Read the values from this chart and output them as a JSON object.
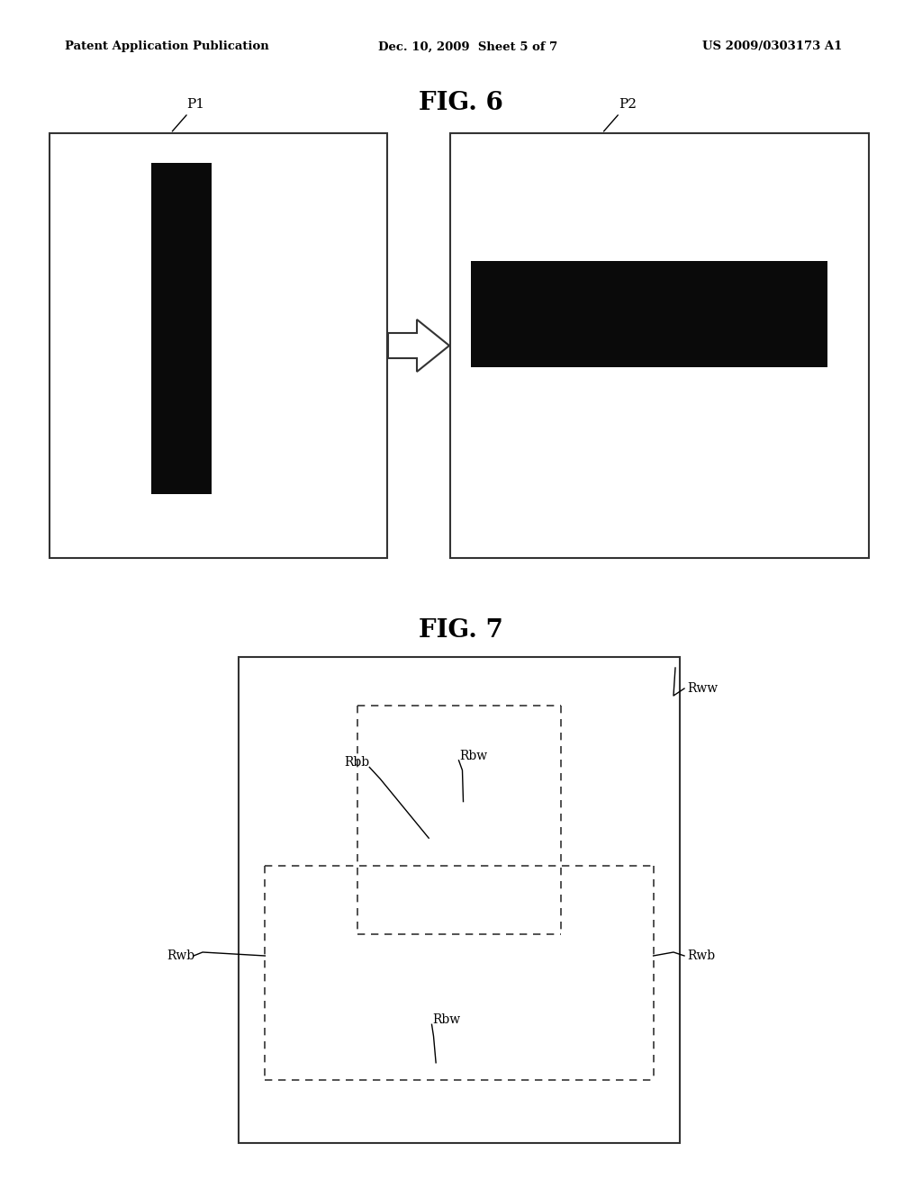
{
  "bg_color": "#ffffff",
  "header_left": "Patent Application Publication",
  "header_mid": "Dec. 10, 2009  Sheet 5 of 7",
  "header_right": "US 2009/0303173 A1",
  "fig6_title": "FIG. 6",
  "fig7_title": "FIG. 7"
}
